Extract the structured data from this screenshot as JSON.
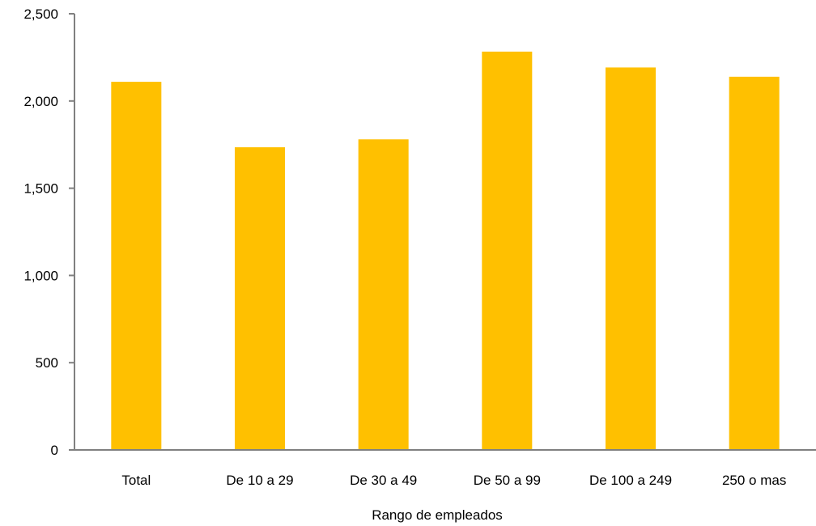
{
  "chart_data": {
    "type": "bar",
    "title": "",
    "xlabel": "Rango de empleados",
    "ylabel": "",
    "categories": [
      "Total",
      "De 10 a 29",
      "De 30 a 49",
      "De 50 a 99",
      "De 100 a 249",
      "250 o mas"
    ],
    "values": [
      2110,
      1735,
      1780,
      2283,
      2192,
      2139
    ],
    "ylim": [
      0,
      2500
    ],
    "yticks": [
      0,
      500,
      1000,
      1500,
      2000,
      2500
    ],
    "ytick_labels": [
      "0",
      "500",
      "1,000",
      "1,500",
      "2,000",
      "2,500"
    ],
    "grid": false,
    "legend": "none",
    "colors": {
      "bar": "#FFC000",
      "axis": "#808080"
    }
  }
}
